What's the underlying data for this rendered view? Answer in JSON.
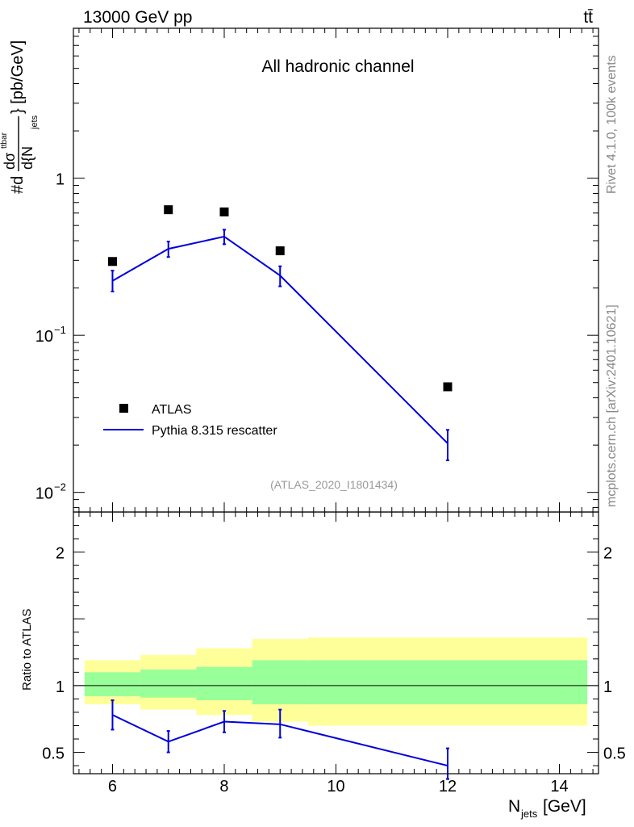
{
  "header": {
    "energy_label": "13000 GeV pp",
    "process_label": "tt̄"
  },
  "side_labels": {
    "rivet": "Rivet 4.1.0,  100k events",
    "mcplots": "mcplots.cern.ch [arXiv:2401.10621]"
  },
  "chart_data": [
    {
      "type": "scatter",
      "panel": "main",
      "title": "All hadronic channel",
      "analysis_id": "(ATLAS_2020_I1801434)",
      "ylabel": "#d dσ^{ttbar} / d{N_jets} [pb/GeV]",
      "ylabel_parts": {
        "prefix": "#d",
        "num": "dσ",
        "num_sup": "ttbar",
        "den": "d{N",
        "den_sub": "jets",
        "suffix": "} [pb/GeV]"
      },
      "yscale": "log",
      "ylim": [
        0.0075,
        9
      ],
      "xlim": [
        5.3,
        14.7
      ],
      "yticks": [
        {
          "value": 1,
          "label": "1"
        },
        {
          "value": 0.1,
          "label": "10",
          "sup": "−1"
        },
        {
          "value": 0.01,
          "label": "10",
          "sup": "−2"
        }
      ],
      "legend_position": "bottom-left",
      "series": [
        {
          "name": "ATLAS",
          "style": "markers",
          "color": "#000000",
          "points": [
            {
              "x": 6,
              "y": 0.295
            },
            {
              "x": 7,
              "y": 0.63
            },
            {
              "x": 8,
              "y": 0.61
            },
            {
              "x": 9,
              "y": 0.345
            },
            {
              "x": 12,
              "y": 0.047
            }
          ]
        },
        {
          "name": "Pythia 8.315 rescatter",
          "style": "line",
          "color": "#0000dd",
          "points": [
            {
              "x": 6,
              "y": 0.222,
              "lo": 0.19,
              "hi": 0.258
            },
            {
              "x": 7,
              "y": 0.355,
              "lo": 0.315,
              "hi": 0.395
            },
            {
              "x": 8,
              "y": 0.425,
              "lo": 0.38,
              "hi": 0.47
            },
            {
              "x": 9,
              "y": 0.24,
              "lo": 0.205,
              "hi": 0.275
            },
            {
              "x": 12,
              "y": 0.0205,
              "lo": 0.016,
              "hi": 0.025
            }
          ]
        }
      ]
    },
    {
      "type": "line",
      "panel": "ratio",
      "ylabel": "Ratio to ATLAS",
      "xlabel": "N_jets [GeV]",
      "xlabel_parts": {
        "main": "N",
        "sub": "jets",
        "suffix": " [GeV]"
      },
      "xlim": [
        5.3,
        14.7
      ],
      "ylim": [
        0.34,
        2.3
      ],
      "xticks": [
        6,
        8,
        10,
        12,
        14
      ],
      "yticks": [
        0.5,
        1,
        2
      ],
      "bands": [
        {
          "name": "total uncertainty",
          "color": "#ffff99",
          "bins": [
            {
              "x0": 5.5,
              "x1": 6.5,
              "lo": 0.86,
              "hi": 1.19
            },
            {
              "x0": 6.5,
              "x1": 7.5,
              "lo": 0.82,
              "hi": 1.23
            },
            {
              "x0": 7.5,
              "x1": 8.5,
              "lo": 0.78,
              "hi": 1.28
            },
            {
              "x0": 8.5,
              "x1": 9.5,
              "lo": 0.73,
              "hi": 1.35
            },
            {
              "x0": 9.5,
              "x1": 14.5,
              "lo": 0.7,
              "hi": 1.36
            }
          ]
        },
        {
          "name": "statistical uncertainty",
          "color": "#99ff99",
          "bins": [
            {
              "x0": 5.5,
              "x1": 6.5,
              "lo": 0.92,
              "hi": 1.1
            },
            {
              "x0": 6.5,
              "x1": 7.5,
              "lo": 0.91,
              "hi": 1.12
            },
            {
              "x0": 7.5,
              "x1": 8.5,
              "lo": 0.89,
              "hi": 1.14
            },
            {
              "x0": 8.5,
              "x1": 9.5,
              "lo": 0.86,
              "hi": 1.19
            },
            {
              "x0": 9.5,
              "x1": 14.5,
              "lo": 0.86,
              "hi": 1.19
            }
          ]
        }
      ],
      "reference_line": 1,
      "series": [
        {
          "name": "Pythia 8.315 rescatter",
          "color": "#0000dd",
          "points": [
            {
              "x": 6,
              "y": 0.78,
              "lo": 0.67,
              "hi": 0.89
            },
            {
              "x": 7,
              "y": 0.58,
              "lo": 0.5,
              "hi": 0.66
            },
            {
              "x": 8,
              "y": 0.73,
              "lo": 0.65,
              "hi": 0.81
            },
            {
              "x": 9,
              "y": 0.71,
              "lo": 0.61,
              "hi": 0.82
            },
            {
              "x": 12,
              "y": 0.4,
              "lo": 0.3,
              "hi": 0.53
            }
          ]
        }
      ]
    }
  ]
}
